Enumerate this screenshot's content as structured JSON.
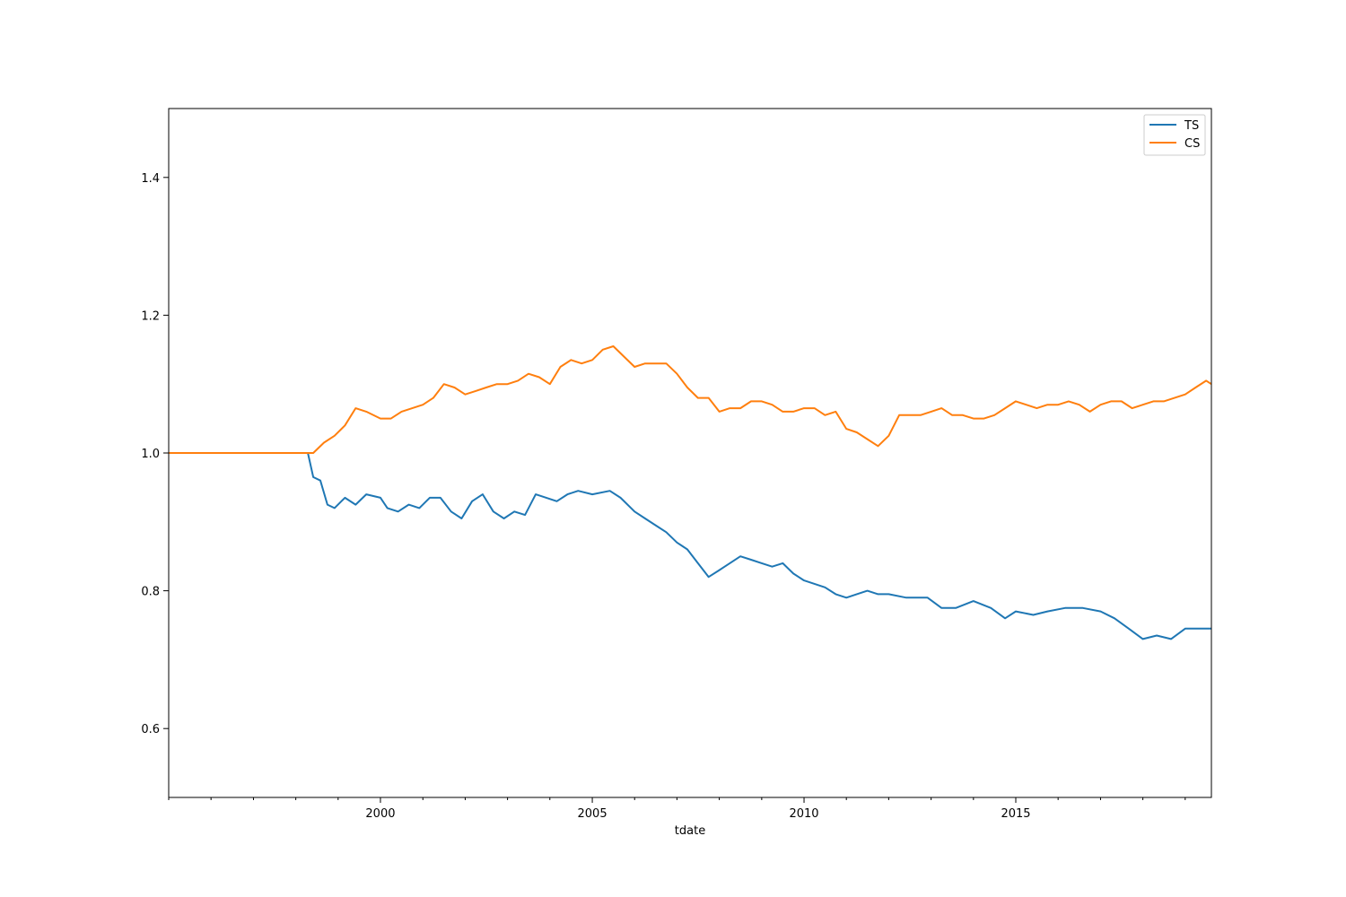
{
  "chart_data": {
    "type": "line",
    "title": "",
    "xlabel": "tdate",
    "ylabel": "",
    "xlim": [
      "1995-01-01",
      "2019-08-15"
    ],
    "ylim": [
      0.5,
      1.5
    ],
    "x_ticks": [
      {
        "date": "2000-01-01",
        "label": "2000"
      },
      {
        "date": "2005-01-01",
        "label": "2005"
      },
      {
        "date": "2010-01-01",
        "label": "2010"
      },
      {
        "date": "2015-01-01",
        "label": "2015"
      }
    ],
    "y_ticks": [
      {
        "value": 0.6,
        "label": "0.6"
      },
      {
        "value": 0.8,
        "label": "0.8"
      },
      {
        "value": 1.0,
        "label": "1.0"
      },
      {
        "value": 1.2,
        "label": "1.2"
      },
      {
        "value": 1.4,
        "label": "1.4"
      }
    ],
    "grid": false,
    "legend_position": "top-right",
    "series": [
      {
        "name": "TS",
        "color": "#1f77b4",
        "points": [
          [
            "1995-01-01",
            1.0
          ],
          [
            "1998-04-15",
            1.0
          ],
          [
            "1998-06-01",
            0.965
          ],
          [
            "1998-08-01",
            0.96
          ],
          [
            "1998-10-01",
            0.925
          ],
          [
            "1998-12-01",
            0.92
          ],
          [
            "1999-03-01",
            0.935
          ],
          [
            "1999-06-01",
            0.925
          ],
          [
            "1999-09-01",
            0.94
          ],
          [
            "2000-01-01",
            0.935
          ],
          [
            "2000-03-01",
            0.92
          ],
          [
            "2000-06-01",
            0.915
          ],
          [
            "2000-09-01",
            0.925
          ],
          [
            "2000-12-01",
            0.92
          ],
          [
            "2001-03-01",
            0.935
          ],
          [
            "2001-06-01",
            0.935
          ],
          [
            "2001-09-01",
            0.915
          ],
          [
            "2001-12-01",
            0.905
          ],
          [
            "2002-03-01",
            0.93
          ],
          [
            "2002-06-01",
            0.94
          ],
          [
            "2002-09-01",
            0.915
          ],
          [
            "2002-12-01",
            0.905
          ],
          [
            "2003-03-01",
            0.915
          ],
          [
            "2003-06-01",
            0.91
          ],
          [
            "2003-09-01",
            0.94
          ],
          [
            "2003-12-01",
            0.935
          ],
          [
            "2004-03-01",
            0.93
          ],
          [
            "2004-06-01",
            0.94
          ],
          [
            "2004-09-01",
            0.945
          ],
          [
            "2005-01-01",
            0.94
          ],
          [
            "2005-06-01",
            0.945
          ],
          [
            "2005-09-01",
            0.935
          ],
          [
            "2006-01-01",
            0.915
          ],
          [
            "2006-04-01",
            0.905
          ],
          [
            "2006-07-01",
            0.895
          ],
          [
            "2006-10-01",
            0.885
          ],
          [
            "2007-01-01",
            0.87
          ],
          [
            "2007-04-01",
            0.86
          ],
          [
            "2007-07-01",
            0.84
          ],
          [
            "2007-10-01",
            0.82
          ],
          [
            "2008-01-01",
            0.83
          ],
          [
            "2008-04-01",
            0.84
          ],
          [
            "2008-07-01",
            0.85
          ],
          [
            "2008-10-01",
            0.845
          ],
          [
            "2009-01-01",
            0.84
          ],
          [
            "2009-04-01",
            0.835
          ],
          [
            "2009-07-01",
            0.84
          ],
          [
            "2009-10-01",
            0.825
          ],
          [
            "2010-01-01",
            0.815
          ],
          [
            "2010-04-01",
            0.81
          ],
          [
            "2010-07-01",
            0.805
          ],
          [
            "2010-10-01",
            0.795
          ],
          [
            "2011-01-01",
            0.79
          ],
          [
            "2011-04-01",
            0.795
          ],
          [
            "2011-07-01",
            0.8
          ],
          [
            "2011-10-01",
            0.795
          ],
          [
            "2012-01-01",
            0.795
          ],
          [
            "2012-06-01",
            0.79
          ],
          [
            "2012-12-01",
            0.79
          ],
          [
            "2013-04-01",
            0.775
          ],
          [
            "2013-08-01",
            0.775
          ],
          [
            "2014-01-01",
            0.785
          ],
          [
            "2014-06-01",
            0.775
          ],
          [
            "2014-10-01",
            0.76
          ],
          [
            "2015-01-01",
            0.77
          ],
          [
            "2015-06-01",
            0.765
          ],
          [
            "2015-10-01",
            0.77
          ],
          [
            "2016-03-01",
            0.775
          ],
          [
            "2016-08-01",
            0.775
          ],
          [
            "2017-01-01",
            0.77
          ],
          [
            "2017-05-01",
            0.76
          ],
          [
            "2017-09-01",
            0.745
          ],
          [
            "2018-01-01",
            0.73
          ],
          [
            "2018-05-01",
            0.735
          ],
          [
            "2018-09-01",
            0.73
          ],
          [
            "2019-01-01",
            0.745
          ],
          [
            "2019-05-01",
            0.745
          ],
          [
            "2019-08-15",
            0.745
          ]
        ]
      },
      {
        "name": "CS",
        "color": "#ff7f0e",
        "points": [
          [
            "1995-01-01",
            1.0
          ],
          [
            "1998-04-15",
            1.0
          ],
          [
            "1998-06-01",
            1.0
          ],
          [
            "1998-09-01",
            1.015
          ],
          [
            "1998-12-01",
            1.025
          ],
          [
            "1999-03-01",
            1.04
          ],
          [
            "1999-06-01",
            1.065
          ],
          [
            "1999-09-01",
            1.06
          ],
          [
            "2000-01-01",
            1.05
          ],
          [
            "2000-04-01",
            1.05
          ],
          [
            "2000-07-01",
            1.06
          ],
          [
            "2000-10-01",
            1.065
          ],
          [
            "2001-01-01",
            1.07
          ],
          [
            "2001-04-01",
            1.08
          ],
          [
            "2001-07-01",
            1.1
          ],
          [
            "2001-10-01",
            1.095
          ],
          [
            "2002-01-01",
            1.085
          ],
          [
            "2002-04-01",
            1.09
          ],
          [
            "2002-07-01",
            1.095
          ],
          [
            "2002-10-01",
            1.1
          ],
          [
            "2003-01-01",
            1.1
          ],
          [
            "2003-04-01",
            1.105
          ],
          [
            "2003-07-01",
            1.115
          ],
          [
            "2003-10-01",
            1.11
          ],
          [
            "2004-01-01",
            1.1
          ],
          [
            "2004-04-01",
            1.125
          ],
          [
            "2004-07-01",
            1.135
          ],
          [
            "2004-10-01",
            1.13
          ],
          [
            "2005-01-01",
            1.135
          ],
          [
            "2005-04-01",
            1.15
          ],
          [
            "2005-07-01",
            1.155
          ],
          [
            "2005-10-01",
            1.14
          ],
          [
            "2006-01-01",
            1.125
          ],
          [
            "2006-04-01",
            1.13
          ],
          [
            "2006-07-01",
            1.13
          ],
          [
            "2006-10-01",
            1.13
          ],
          [
            "2007-01-01",
            1.115
          ],
          [
            "2007-04-01",
            1.095
          ],
          [
            "2007-07-01",
            1.08
          ],
          [
            "2007-10-01",
            1.08
          ],
          [
            "2008-01-01",
            1.06
          ],
          [
            "2008-04-01",
            1.065
          ],
          [
            "2008-07-01",
            1.065
          ],
          [
            "2008-10-01",
            1.075
          ],
          [
            "2009-01-01",
            1.075
          ],
          [
            "2009-04-01",
            1.07
          ],
          [
            "2009-07-01",
            1.06
          ],
          [
            "2009-10-01",
            1.06
          ],
          [
            "2010-01-01",
            1.065
          ],
          [
            "2010-04-01",
            1.065
          ],
          [
            "2010-07-01",
            1.055
          ],
          [
            "2010-10-01",
            1.06
          ],
          [
            "2011-01-01",
            1.035
          ],
          [
            "2011-04-01",
            1.03
          ],
          [
            "2011-07-01",
            1.02
          ],
          [
            "2011-10-01",
            1.01
          ],
          [
            "2012-01-01",
            1.025
          ],
          [
            "2012-04-01",
            1.055
          ],
          [
            "2012-07-01",
            1.055
          ],
          [
            "2012-10-01",
            1.055
          ],
          [
            "2013-01-01",
            1.06
          ],
          [
            "2013-04-01",
            1.065
          ],
          [
            "2013-07-01",
            1.055
          ],
          [
            "2013-10-01",
            1.055
          ],
          [
            "2014-01-01",
            1.05
          ],
          [
            "2014-04-01",
            1.05
          ],
          [
            "2014-07-01",
            1.055
          ],
          [
            "2014-10-01",
            1.065
          ],
          [
            "2015-01-01",
            1.075
          ],
          [
            "2015-04-01",
            1.07
          ],
          [
            "2015-07-01",
            1.065
          ],
          [
            "2015-10-01",
            1.07
          ],
          [
            "2016-01-01",
            1.07
          ],
          [
            "2016-04-01",
            1.075
          ],
          [
            "2016-07-01",
            1.07
          ],
          [
            "2016-10-01",
            1.06
          ],
          [
            "2017-01-01",
            1.07
          ],
          [
            "2017-04-01",
            1.075
          ],
          [
            "2017-07-01",
            1.075
          ],
          [
            "2017-10-01",
            1.065
          ],
          [
            "2018-01-01",
            1.07
          ],
          [
            "2018-04-01",
            1.075
          ],
          [
            "2018-07-01",
            1.075
          ],
          [
            "2018-10-01",
            1.08
          ],
          [
            "2019-01-01",
            1.085
          ],
          [
            "2019-04-01",
            1.095
          ],
          [
            "2019-07-01",
            1.105
          ],
          [
            "2019-08-15",
            1.1
          ]
        ]
      }
    ]
  }
}
